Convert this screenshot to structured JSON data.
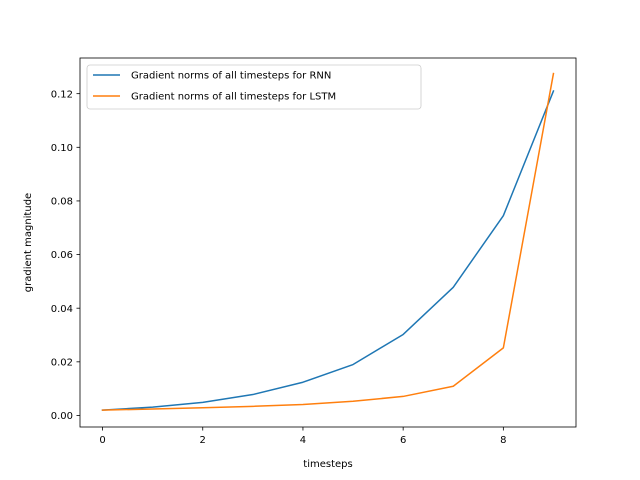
{
  "chart_data": {
    "type": "line",
    "title": "",
    "xlabel": "timesteps",
    "ylabel": "gradient magnitude",
    "xlim": [
      -0.45,
      9.45
    ],
    "ylim": [
      -0.0043,
      0.1333
    ],
    "xticks": [
      0,
      2,
      4,
      6,
      8
    ],
    "xtick_labels": [
      "0",
      "2",
      "4",
      "6",
      "8"
    ],
    "yticks": [
      0.0,
      0.02,
      0.04,
      0.06,
      0.08,
      0.1,
      0.12
    ],
    "ytick_labels": [
      "0.00",
      "0.02",
      "0.04",
      "0.06",
      "0.08",
      "0.10",
      "0.12"
    ],
    "grid": false,
    "legend_position": "top-left",
    "x": [
      0,
      1,
      2,
      3,
      4,
      5,
      6,
      7,
      8,
      9
    ],
    "series": [
      {
        "name": "Gradient norms of all timesteps for RNN",
        "color": "#1f77b4",
        "values": [
          0.002,
          0.0031,
          0.0049,
          0.0078,
          0.0124,
          0.019,
          0.0302,
          0.0478,
          0.0745,
          0.121
        ]
      },
      {
        "name": "Gradient norms of all timesteps for LSTM",
        "color": "#ff7f0e",
        "values": [
          0.002,
          0.0024,
          0.0029,
          0.0034,
          0.0041,
          0.0053,
          0.0071,
          0.0109,
          0.0252,
          0.1275
        ]
      }
    ]
  }
}
